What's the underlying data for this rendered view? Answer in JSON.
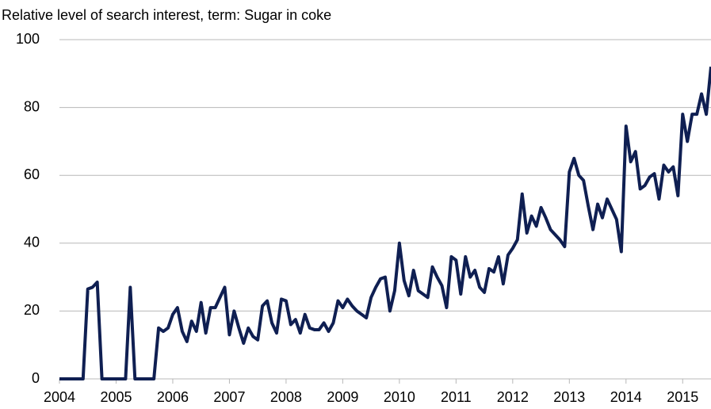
{
  "chart_data": {
    "type": "line",
    "title": "Relative level of search interest, term: Sugar in coke",
    "x": [
      2004,
      2004.083,
      2004.167,
      2004.25,
      2004.333,
      2004.417,
      2004.5,
      2004.583,
      2004.667,
      2004.75,
      2004.833,
      2004.917,
      2005,
      2005.083,
      2005.167,
      2005.25,
      2005.333,
      2005.417,
      2005.5,
      2005.583,
      2005.667,
      2005.75,
      2005.833,
      2005.917,
      2006,
      2006.083,
      2006.167,
      2006.25,
      2006.333,
      2006.417,
      2006.5,
      2006.583,
      2006.667,
      2006.75,
      2006.833,
      2006.917,
      2007,
      2007.083,
      2007.167,
      2007.25,
      2007.333,
      2007.417,
      2007.5,
      2007.583,
      2007.667,
      2007.75,
      2007.833,
      2007.917,
      2008,
      2008.083,
      2008.167,
      2008.25,
      2008.333,
      2008.417,
      2008.5,
      2008.583,
      2008.667,
      2008.75,
      2008.833,
      2008.917,
      2009,
      2009.083,
      2009.167,
      2009.25,
      2009.333,
      2009.417,
      2009.5,
      2009.583,
      2009.667,
      2009.75,
      2009.833,
      2009.917,
      2010,
      2010.083,
      2010.167,
      2010.25,
      2010.333,
      2010.417,
      2010.5,
      2010.583,
      2010.667,
      2010.75,
      2010.833,
      2010.917,
      2011,
      2011.083,
      2011.167,
      2011.25,
      2011.333,
      2011.417,
      2011.5,
      2011.583,
      2011.667,
      2011.75,
      2011.833,
      2011.917,
      2012,
      2012.083,
      2012.167,
      2012.25,
      2012.333,
      2012.417,
      2012.5,
      2012.583,
      2012.667,
      2012.75,
      2012.833,
      2012.917,
      2013,
      2013.083,
      2013.167,
      2013.25,
      2013.333,
      2013.417,
      2013.5,
      2013.583,
      2013.667,
      2013.75,
      2013.833,
      2013.917,
      2014,
      2014.083,
      2014.167,
      2014.25,
      2014.333,
      2014.417,
      2014.5,
      2014.583,
      2014.667,
      2014.75,
      2014.833,
      2014.917,
      2015,
      2015.083,
      2015.167,
      2015.25,
      2015.333,
      2015.417,
      2015.5
    ],
    "series": [
      {
        "color": "#0f1f52",
        "values": [
          0,
          0,
          0,
          0,
          0,
          0,
          26.5,
          27,
          28.5,
          0,
          0,
          0,
          0,
          0,
          0,
          27,
          0,
          0,
          0,
          0,
          0,
          15,
          14,
          15,
          19,
          21,
          14,
          11,
          17,
          14,
          22.5,
          13.5,
          21,
          21,
          24,
          27,
          13,
          20,
          15,
          10.5,
          15,
          12.5,
          11.5,
          21.5,
          23,
          16.5,
          13.5,
          23.5,
          23,
          16,
          17.5,
          13.5,
          19,
          15,
          14.5,
          14.5,
          16.5,
          14,
          16.5,
          23,
          21,
          23.5,
          21.5,
          20,
          19,
          18,
          24,
          27,
          29.5,
          30,
          20,
          26,
          40,
          29,
          24.5,
          32,
          26,
          25,
          24,
          33,
          30,
          27.5,
          21,
          36,
          35,
          25,
          36,
          30,
          32,
          27,
          25.5,
          32.5,
          31.5,
          36,
          28,
          36.5,
          38.5,
          41,
          54.5,
          43,
          48,
          45,
          50.5,
          47.5,
          44,
          42.5,
          41,
          39,
          61,
          65,
          60,
          58.5,
          51,
          44,
          51.5,
          47.5,
          53,
          50,
          47,
          37.5,
          74.5,
          64,
          67,
          56,
          57,
          59.5,
          60.5,
          53,
          63,
          61,
          62.5,
          54,
          78,
          70,
          78,
          78,
          84,
          78,
          92
        ]
      }
    ],
    "xlim": [
      2004,
      2015.5
    ],
    "xticks": [
      2004,
      2005,
      2006,
      2007,
      2008,
      2009,
      2010,
      2011,
      2012,
      2013,
      2014,
      2015
    ],
    "ylim": [
      0,
      100
    ],
    "yticks": [
      0,
      20,
      40,
      60,
      80,
      100
    ],
    "grid": true
  }
}
